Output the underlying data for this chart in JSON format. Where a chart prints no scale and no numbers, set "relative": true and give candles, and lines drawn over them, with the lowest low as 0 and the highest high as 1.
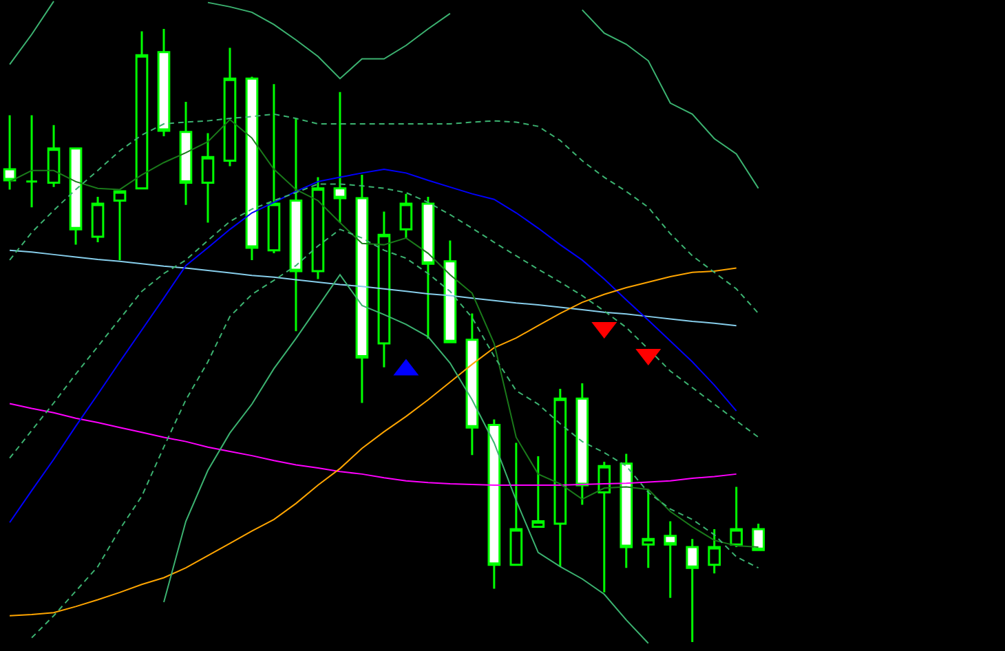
{
  "chart_data": {
    "type": "candlestick",
    "relative": true,
    "color": "#00ff00",
    "colors": [
      "#ffffff",
      "#00ff00",
      "#000000",
      "#ffffff",
      "#000000",
      "#000000",
      "#000000",
      "#ffffff",
      "#ffffff",
      "#000000",
      "#000000",
      "#ffffff",
      "#000000",
      "#ffffff",
      "#000000",
      "#ffffff",
      "#ffffff",
      "#000000",
      "#000000",
      "#ffffff",
      "#ffffff",
      "#ffffff",
      "#ffffff",
      "#000000",
      "#000000",
      "#000000",
      "#ffffff",
      "#000000",
      "#ffffff",
      "#000000",
      "#ffffff",
      "#ffffff",
      "#000000",
      "#000000",
      "#ffffff"
    ],
    "categories": [
      null,
      null,
      null,
      null,
      null,
      null,
      null,
      null,
      null,
      null,
      null,
      null,
      null,
      null,
      null,
      null,
      null,
      null,
      null,
      null,
      null,
      null,
      null,
      null,
      null,
      null,
      null,
      null,
      null,
      null,
      null,
      null,
      null,
      null,
      null
    ],
    "ohlc": [
      [
        0.771,
        0.859,
        0.738,
        0.753
      ],
      [
        0.751,
        0.859,
        0.709,
        0.751
      ],
      [
        0.749,
        0.843,
        0.742,
        0.805
      ],
      [
        0.805,
        0.805,
        0.648,
        0.673
      ],
      [
        0.661,
        0.726,
        0.652,
        0.715
      ],
      [
        0.72,
        0.735,
        0.623,
        0.735
      ],
      [
        0.74,
        0.996,
        0.74,
        0.957
      ],
      [
        0.962,
        1.0,
        0.825,
        0.834
      ],
      [
        0.832,
        0.881,
        0.713,
        0.749
      ],
      [
        0.749,
        0.83,
        0.684,
        0.791
      ],
      [
        0.785,
        0.969,
        0.776,
        0.919
      ],
      [
        0.919,
        0.922,
        0.623,
        0.643
      ],
      [
        0.639,
        0.91,
        0.634,
        0.715
      ],
      [
        0.72,
        0.854,
        0.507,
        0.605
      ],
      [
        0.605,
        0.758,
        0.592,
        0.74
      ],
      [
        0.74,
        0.897,
        0.684,
        0.724
      ],
      [
        0.724,
        0.762,
        0.39,
        0.464
      ],
      [
        0.487,
        0.702,
        0.448,
        0.664
      ],
      [
        0.673,
        0.731,
        0.659,
        0.715
      ],
      [
        0.715,
        0.726,
        0.495,
        0.617
      ],
      [
        0.621,
        0.655,
        0.489,
        0.489
      ],
      [
        0.493,
        0.536,
        0.305,
        0.35
      ],
      [
        0.354,
        0.363,
        0.087,
        0.126
      ],
      [
        0.126,
        0.325,
        0.126,
        0.184
      ],
      [
        0.188,
        0.303,
        0.188,
        0.197
      ],
      [
        0.193,
        0.413,
        0.123,
        0.397
      ],
      [
        0.397,
        0.422,
        0.224,
        0.256
      ],
      [
        0.244,
        0.294,
        0.081,
        0.287
      ],
      [
        0.291,
        0.307,
        0.121,
        0.155
      ],
      [
        0.159,
        0.249,
        0.121,
        0.168
      ],
      [
        0.173,
        0.197,
        0.072,
        0.159
      ],
      [
        0.155,
        0.168,
        0.0,
        0.121
      ],
      [
        0.126,
        0.184,
        0.112,
        0.155
      ],
      [
        0.159,
        0.253,
        0.155,
        0.184
      ],
      [
        0.184,
        0.193,
        0.15,
        0.15
      ]
    ],
    "series": [
      {
        "type": "line",
        "color": "#87ceeb",
        "line_style": "solid",
        "values": [
          0.639,
          0.636,
          0.632,
          0.628,
          0.624,
          0.621,
          0.617,
          0.613,
          0.61,
          0.606,
          0.602,
          0.598,
          0.595,
          0.591,
          0.587,
          0.583,
          0.58,
          0.576,
          0.572,
          0.568,
          0.565,
          0.561,
          0.557,
          0.553,
          0.55,
          0.546,
          0.542,
          0.538,
          0.535,
          0.531,
          0.527,
          0.523,
          0.52,
          0.516,
          null
        ]
      },
      {
        "type": "line",
        "color": "#ff00ff",
        "line_style": "solid",
        "values": [
          0.389,
          0.381,
          0.374,
          0.365,
          0.358,
          0.35,
          0.342,
          0.334,
          0.327,
          0.318,
          0.311,
          0.304,
          0.296,
          0.289,
          0.284,
          0.278,
          0.274,
          0.268,
          0.263,
          0.26,
          0.258,
          0.257,
          0.256,
          0.256,
          0.256,
          0.256,
          0.257,
          0.258,
          0.259,
          0.261,
          0.263,
          0.267,
          0.27,
          0.274,
          null
        ]
      },
      {
        "type": "line",
        "color": "#0000ff",
        "line_style": "solid",
        "values": [
          0.195,
          0.247,
          0.298,
          0.352,
          0.404,
          0.457,
          0.509,
          0.561,
          0.614,
          0.643,
          0.673,
          0.7,
          0.717,
          0.735,
          0.751,
          0.758,
          0.765,
          0.771,
          0.765,
          0.753,
          0.742,
          0.731,
          0.722,
          0.7,
          0.675,
          0.648,
          0.623,
          0.592,
          0.558,
          0.525,
          0.491,
          0.457,
          0.419,
          0.377,
          null
        ]
      },
      {
        "type": "line",
        "color": "#ffa500",
        "line_style": "solid",
        "values": [
          0.043,
          0.045,
          0.048,
          0.058,
          0.069,
          0.081,
          0.094,
          0.105,
          0.121,
          0.141,
          0.161,
          0.181,
          0.2,
          0.226,
          0.256,
          0.283,
          0.316,
          0.343,
          0.368,
          0.395,
          0.424,
          0.453,
          0.48,
          0.496,
          0.516,
          0.536,
          0.554,
          0.567,
          0.578,
          0.587,
          0.596,
          0.603,
          0.605,
          0.61,
          null
        ]
      },
      {
        "type": "line",
        "color": "#1a7a1a",
        "line_style": "solid",
        "values": [
          0.751,
          0.769,
          0.769,
          0.751,
          0.74,
          0.738,
          0.762,
          0.782,
          0.798,
          0.816,
          0.852,
          0.822,
          0.771,
          0.738,
          0.72,
          0.684,
          0.65,
          0.648,
          0.659,
          0.634,
          0.599,
          0.569,
          0.487,
          0.334,
          0.274,
          0.258,
          0.233,
          0.251,
          0.253,
          0.249,
          0.213,
          0.188,
          0.166,
          0.157,
          0.155
        ]
      },
      {
        "type": "line",
        "color": "#3cb371",
        "line_style": "solid",
        "values": [
          0.942,
          0.991,
          1.045,
          null,
          null,
          null,
          null,
          null,
          null,
          1.043,
          1.036,
          1.027,
          1.007,
          0.982,
          0.955,
          0.919,
          0.951,
          0.951,
          0.973,
          1.0,
          1.025,
          null,
          null,
          null,
          null,
          null,
          1.031,
          0.993,
          0.975,
          0.948,
          0.879,
          0.861,
          0.821,
          0.796,
          0.74
        ]
      },
      {
        "type": "line",
        "color": "#3cb371",
        "line_style": "solid",
        "values": [
          null,
          null,
          null,
          null,
          null,
          null,
          null,
          0.065,
          0.197,
          0.28,
          0.341,
          0.388,
          0.446,
          0.495,
          0.547,
          0.599,
          0.549,
          0.534,
          0.518,
          0.498,
          0.455,
          0.395,
          0.325,
          0.231,
          0.146,
          0.123,
          0.103,
          0.078,
          0.036,
          -0.002,
          null,
          null,
          null,
          null,
          null
        ]
      },
      {
        "type": "line",
        "color": "#3cb371",
        "line_style": "dashed",
        "values": [
          0.623,
          0.668,
          0.704,
          0.738,
          0.769,
          0.801,
          0.827,
          0.845,
          0.848,
          0.85,
          0.854,
          0.857,
          0.861,
          0.854,
          0.845,
          0.845,
          0.845,
          0.845,
          0.845,
          0.845,
          0.845,
          0.848,
          0.85,
          0.848,
          0.841,
          0.818,
          0.785,
          0.758,
          0.735,
          0.709,
          0.666,
          0.63,
          0.603,
          0.576,
          0.536
        ]
      },
      {
        "type": "line",
        "color": "#3cb371",
        "line_style": "dashed",
        "values": [
          0.3,
          0.345,
          0.39,
          0.437,
          0.482,
          0.527,
          0.572,
          0.601,
          0.623,
          0.655,
          0.686,
          0.706,
          0.72,
          0.733,
          0.747,
          0.747,
          0.744,
          0.74,
          0.733,
          0.717,
          0.697,
          0.675,
          0.652,
          0.63,
          0.608,
          0.587,
          0.565,
          0.54,
          0.513,
          0.478,
          0.442,
          0.415,
          0.388,
          0.361,
          0.334
        ]
      },
      {
        "type": "line",
        "color": "#3cb371",
        "line_style": "dashed",
        "values": [
          null,
          0.007,
          0.043,
          0.083,
          0.123,
          0.184,
          0.238,
          0.318,
          0.395,
          0.457,
          0.531,
          0.567,
          0.59,
          0.614,
          0.646,
          0.673,
          0.659,
          0.639,
          0.626,
          0.601,
          0.572,
          0.529,
          0.466,
          0.41,
          0.388,
          0.356,
          0.327,
          0.309,
          0.287,
          0.244,
          0.217,
          0.2,
          0.175,
          0.139,
          0.121
        ]
      },
      {
        "type": "scatter",
        "color": "#0000ff",
        "marker": "triangle",
        "values": [
          null,
          null,
          null,
          null,
          null,
          null,
          null,
          null,
          null,
          null,
          null,
          null,
          null,
          null,
          null,
          null,
          null,
          null,
          0.444,
          null,
          null,
          null,
          null,
          null,
          null,
          null,
          null,
          null,
          null,
          null,
          null,
          null,
          null,
          null,
          null
        ]
      },
      {
        "type": "scatter",
        "color": "#ff0000",
        "marker": "triangle-down",
        "values": [
          null,
          null,
          null,
          null,
          null,
          null,
          null,
          null,
          null,
          null,
          null,
          null,
          null,
          null,
          null,
          null,
          null,
          null,
          null,
          null,
          null,
          null,
          null,
          null,
          null,
          null,
          null,
          0.513,
          null,
          0.469,
          null,
          null,
          null,
          null,
          null
        ]
      }
    ]
  }
}
